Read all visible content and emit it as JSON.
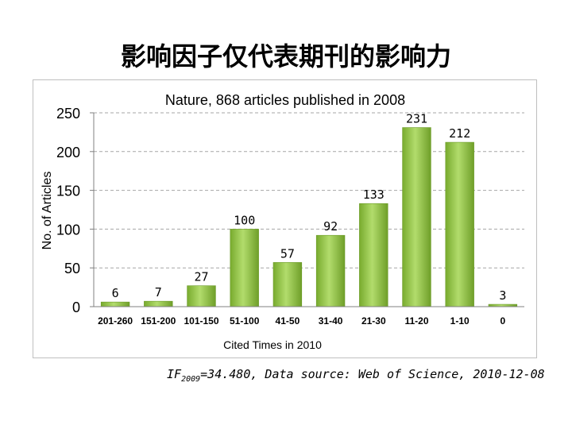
{
  "slide_title": "影响因子仅代表期刊的影响力",
  "source_note": {
    "if_prefix": "IF",
    "if_year": "2009",
    "text": "=34.480, Data source: Web of Science, 2010-12-08"
  },
  "chart_data": {
    "type": "bar",
    "title": "Nature, 868 articles published in 2008",
    "xlabel": "Cited Times in 2010",
    "ylabel": "No. of Articles",
    "categories": [
      "201-260",
      "151-200",
      "101-150",
      "51-100",
      "41-50",
      "31-40",
      "21-30",
      "11-20",
      "1-10",
      "0"
    ],
    "values": [
      6,
      7,
      27,
      100,
      57,
      92,
      133,
      231,
      212,
      3
    ],
    "ylim": [
      0,
      250
    ],
    "yticks": [
      0,
      50,
      100,
      150,
      200,
      250
    ],
    "grid": true,
    "bar_color": "#8cbf3f"
  }
}
